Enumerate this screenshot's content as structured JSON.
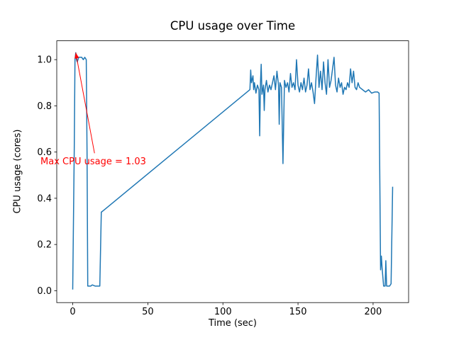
{
  "chart_data": {
    "type": "line",
    "title": "CPU usage over Time",
    "xlabel": "Time (sec)",
    "ylabel": "CPU usage (cores)",
    "xlim": [
      -10.65,
      223.65
    ],
    "ylim": [
      -0.0515,
      1.0815
    ],
    "x_ticks": [
      0,
      50,
      100,
      150,
      200
    ],
    "y_ticks": [
      0.0,
      0.2,
      0.4,
      0.6,
      0.8,
      1.0
    ],
    "grid": false,
    "legend": "none",
    "series": [
      {
        "color": "#1f77b4",
        "points": [
          [
            0,
            0.005
          ],
          [
            1,
            0.62
          ],
          [
            1.5,
            1.0
          ],
          [
            2,
            1.03
          ],
          [
            2.5,
            1.0
          ],
          [
            3,
            0.99
          ],
          [
            4,
            1.01
          ],
          [
            6,
            1.01
          ],
          [
            7,
            1.0
          ],
          [
            8,
            1.01
          ],
          [
            9,
            1.0
          ],
          [
            9.5,
            0.6
          ],
          [
            10,
            0.02
          ],
          [
            12,
            0.02
          ],
          [
            13,
            0.025
          ],
          [
            15,
            0.02
          ],
          [
            17,
            0.02
          ],
          [
            18,
            0.02
          ],
          [
            19,
            0.34
          ],
          [
            20,
            0.345
          ],
          [
            118,
            0.87
          ],
          [
            118.5,
            0.955
          ],
          [
            119,
            0.9
          ],
          [
            120,
            0.93
          ],
          [
            120.5,
            0.87
          ],
          [
            121,
            0.9
          ],
          [
            122,
            0.855
          ],
          [
            123,
            0.89
          ],
          [
            124,
            0.87
          ],
          [
            124.5,
            0.67
          ],
          [
            125,
            0.9
          ],
          [
            125.5,
            0.98
          ],
          [
            126,
            0.85
          ],
          [
            127,
            0.89
          ],
          [
            127.5,
            0.78
          ],
          [
            128,
            0.87
          ],
          [
            129,
            0.91
          ],
          [
            130,
            0.86
          ],
          [
            131,
            0.89
          ],
          [
            132,
            0.87
          ],
          [
            133,
            0.9
          ],
          [
            134,
            0.93
          ],
          [
            135,
            0.87
          ],
          [
            136,
            0.95
          ],
          [
            137,
            0.89
          ],
          [
            137.5,
            0.72
          ],
          [
            138,
            0.9
          ],
          [
            139,
            0.88
          ],
          [
            140,
            0.55
          ],
          [
            141,
            0.91
          ],
          [
            142,
            0.88
          ],
          [
            143,
            0.9
          ],
          [
            144,
            0.86
          ],
          [
            145,
            0.94
          ],
          [
            146,
            0.88
          ],
          [
            147,
            0.9
          ],
          [
            148,
            0.87
          ],
          [
            149,
            1.0
          ],
          [
            150,
            0.89
          ],
          [
            151,
            0.86
          ],
          [
            152,
            0.9
          ],
          [
            153,
            0.87
          ],
          [
            154,
            0.92
          ],
          [
            155,
            0.86
          ],
          [
            156,
            0.89
          ],
          [
            157,
            0.96
          ],
          [
            158,
            0.87
          ],
          [
            159,
            0.9
          ],
          [
            160,
            0.86
          ],
          [
            161,
            0.81
          ],
          [
            162,
            0.92
          ],
          [
            163,
            1.02
          ],
          [
            164,
            0.88
          ],
          [
            165,
            0.95
          ],
          [
            166,
            0.87
          ],
          [
            167,
            0.99
          ],
          [
            168,
            0.9
          ],
          [
            169,
            0.85
          ],
          [
            170,
            1.0
          ],
          [
            171,
            0.88
          ],
          [
            172,
            0.91
          ],
          [
            173,
            0.96
          ],
          [
            174,
            1.01
          ],
          [
            175,
            0.89
          ],
          [
            176,
            0.86
          ],
          [
            177,
            0.92
          ],
          [
            178,
            0.88
          ],
          [
            179,
            0.9
          ],
          [
            180,
            0.85
          ],
          [
            181,
            0.88
          ],
          [
            182,
            0.87
          ],
          [
            183,
            0.9
          ],
          [
            184,
            0.88
          ],
          [
            185,
            0.96
          ],
          [
            186,
            0.9
          ],
          [
            187,
            0.95
          ],
          [
            188,
            0.88
          ],
          [
            189,
            0.87
          ],
          [
            190,
            0.9
          ],
          [
            191,
            0.88
          ],
          [
            193,
            0.87
          ],
          [
            195,
            0.86
          ],
          [
            197,
            0.87
          ],
          [
            199,
            0.855
          ],
          [
            201,
            0.86
          ],
          [
            203,
            0.86
          ],
          [
            204,
            0.855
          ],
          [
            205,
            0.09
          ],
          [
            205.5,
            0.15
          ],
          [
            206,
            0.1
          ],
          [
            207,
            0.02
          ],
          [
            208,
            0.02
          ],
          [
            208.5,
            0.13
          ],
          [
            209,
            0.02
          ],
          [
            210,
            0.02
          ],
          [
            211,
            0.02
          ],
          [
            212,
            0.03
          ],
          [
            213,
            0.45
          ]
        ]
      }
    ],
    "annotation": {
      "text": "Max CPU usage = 1.03",
      "color": "#ff0000",
      "target_xy": [
        2,
        1.03
      ],
      "text_xy": [
        -21.5,
        0.545
      ],
      "arrow_start_xy": [
        14.5,
        0.595
      ]
    }
  }
}
